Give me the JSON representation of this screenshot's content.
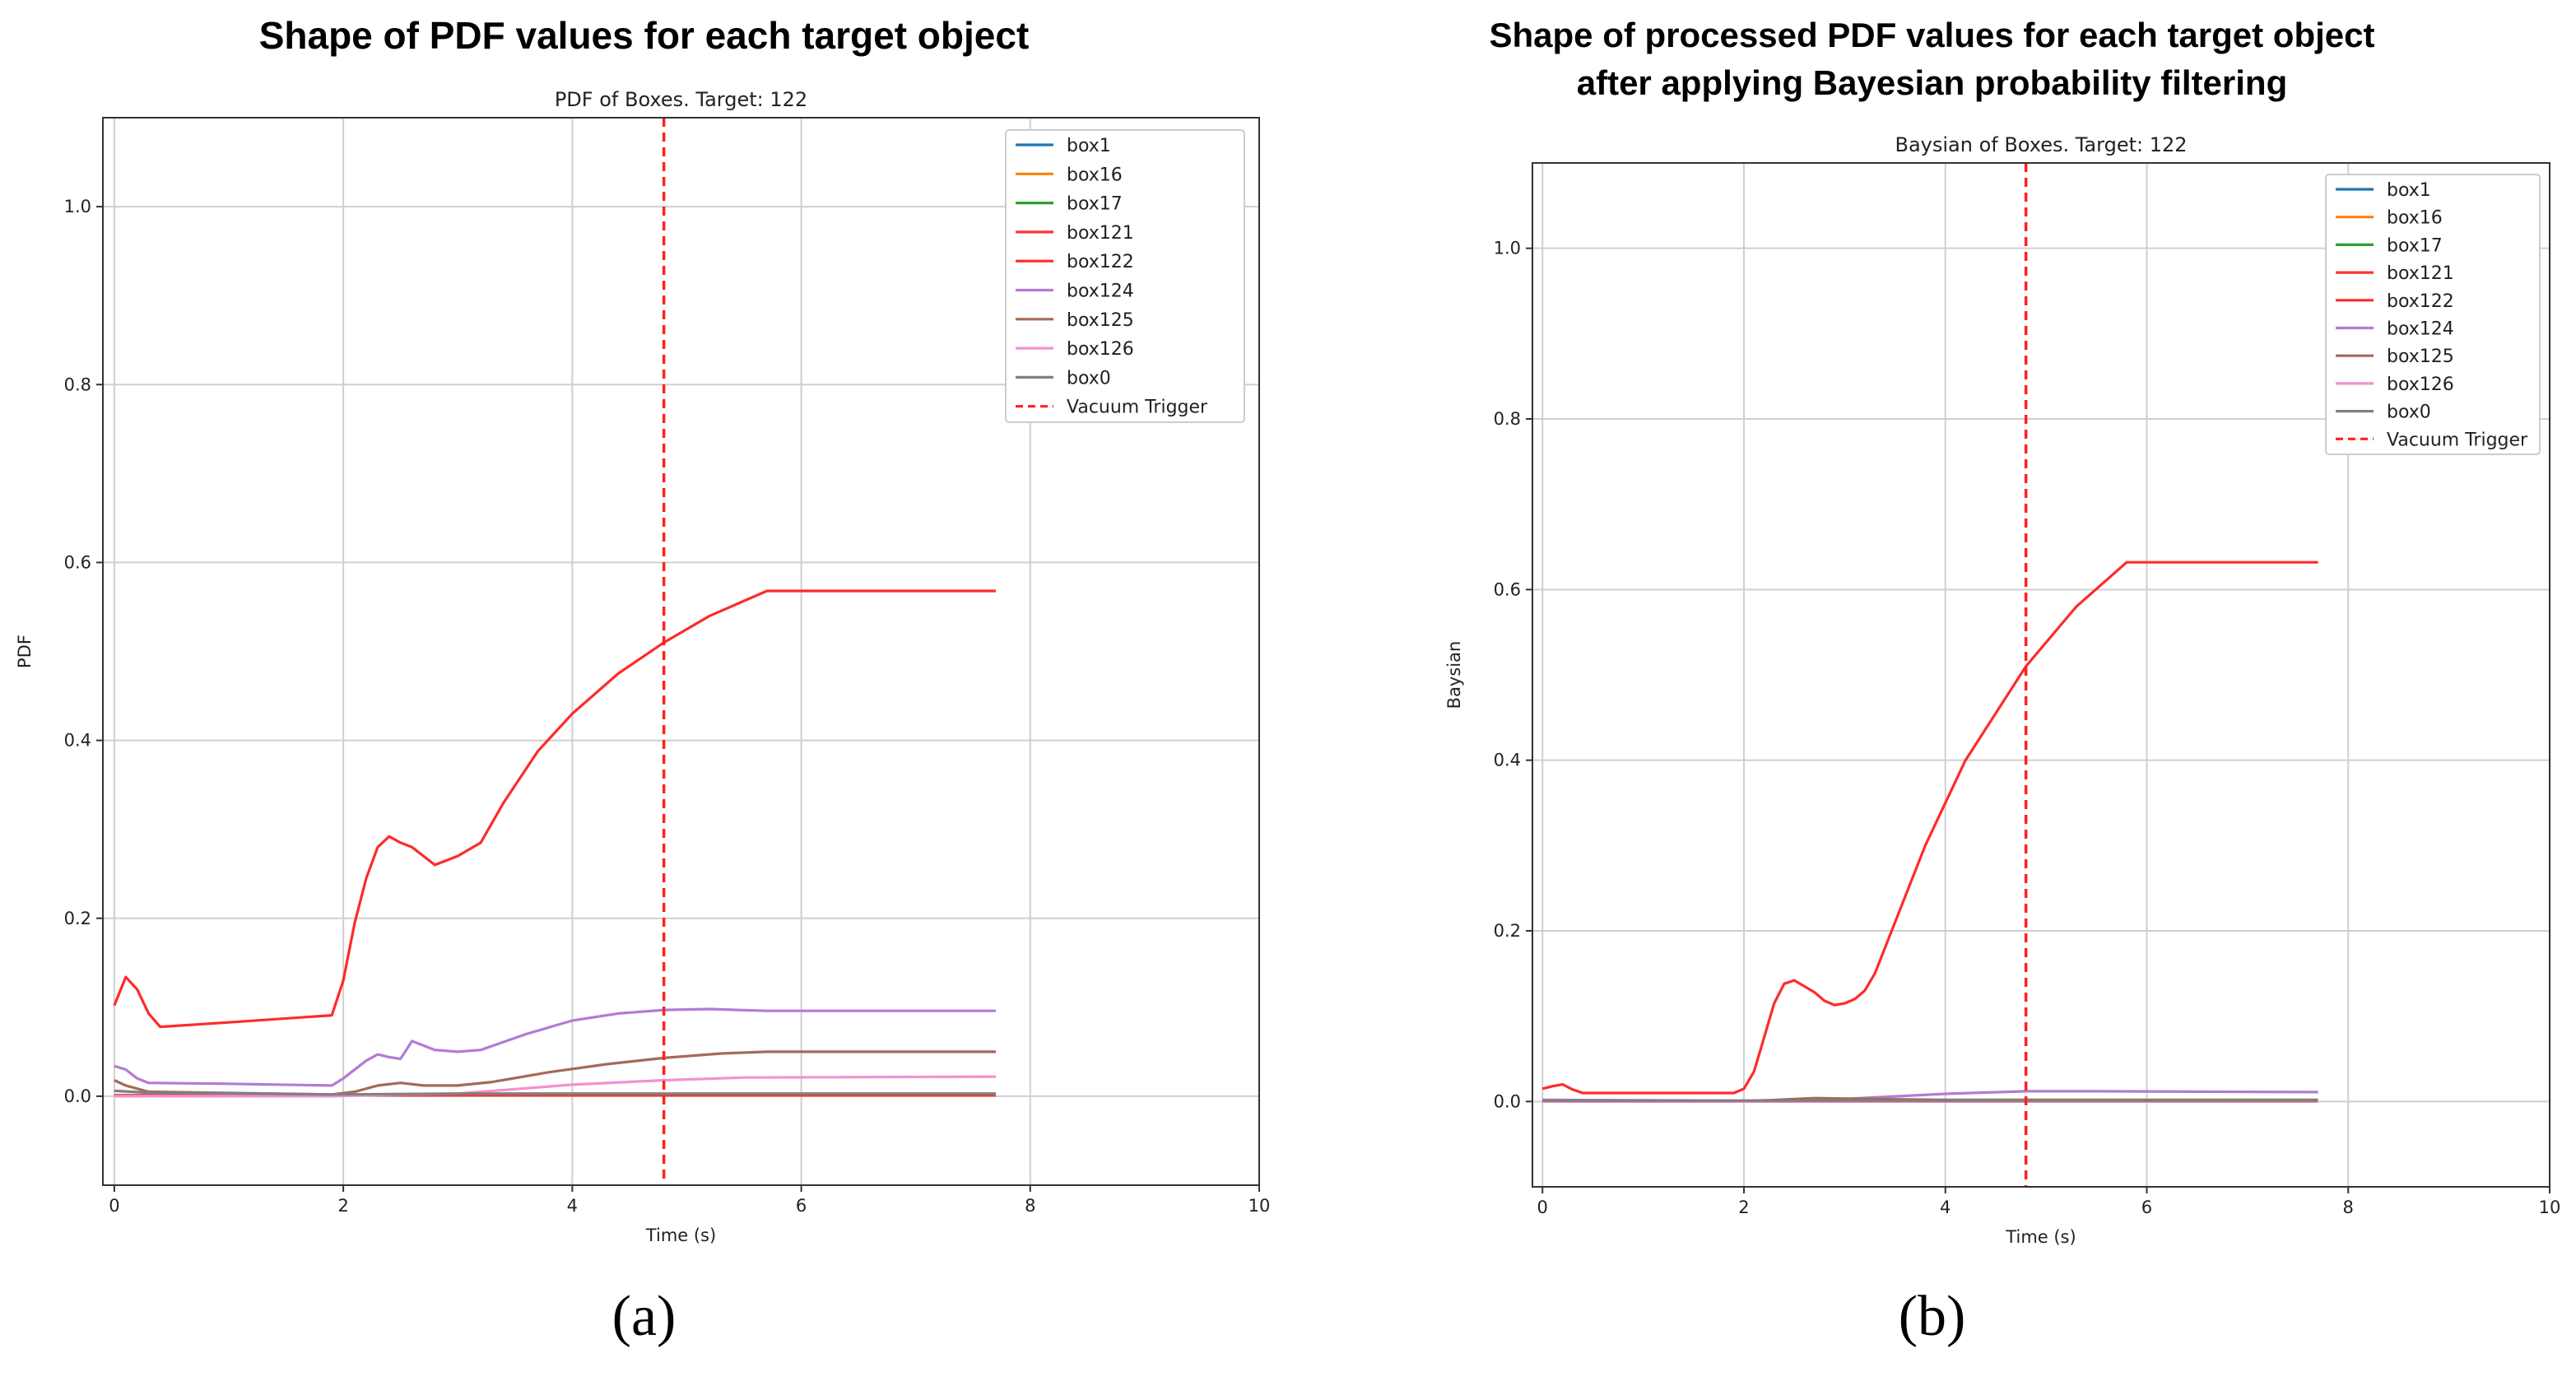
{
  "figure": {
    "panel_a_label": "(a)",
    "panel_b_label": "(b)"
  },
  "chart_data": [
    {
      "id": "a",
      "type": "line",
      "heading_lines": [
        "Shape of PDF values for each target object"
      ],
      "title": "PDF of Boxes. Target: 122",
      "xlabel": "Time (s)",
      "ylabel": "PDF",
      "xlim": [
        -0.1,
        10
      ],
      "ylim": [
        -0.1,
        1.1
      ],
      "xticks": [
        0,
        2,
        4,
        6,
        8,
        10
      ],
      "yticks": [
        0.0,
        0.2,
        0.4,
        0.6,
        0.8,
        1.0
      ],
      "grid": true,
      "legend_position": "top-right",
      "vline": {
        "name": "Vacuum Trigger",
        "x": 4.8,
        "color": "#ff2020",
        "style": "dashed"
      },
      "series": [
        {
          "name": "box1",
          "color": "#1f77b4",
          "points": [
            [
              0,
              0.001
            ],
            [
              1.9,
              0.001
            ],
            [
              7.7,
              0.001
            ]
          ]
        },
        {
          "name": "box16",
          "color": "#ff7f0e",
          "points": [
            [
              0,
              0.001
            ],
            [
              1.9,
              0.001
            ],
            [
              7.7,
              0.001
            ]
          ]
        },
        {
          "name": "box17",
          "color": "#2ca02c",
          "points": [
            [
              0,
              0.001
            ],
            [
              1.9,
              0.001
            ],
            [
              7.7,
              0.001
            ]
          ]
        },
        {
          "name": "box121",
          "color": "#ff3333",
          "points": [
            [
              0,
              0.001
            ],
            [
              1.9,
              0.001
            ],
            [
              7.7,
              0.001
            ]
          ]
        },
        {
          "name": "box122",
          "color": "#ff2a2a",
          "points": [
            [
              0,
              0.102
            ],
            [
              0.1,
              0.134
            ],
            [
              0.2,
              0.12
            ],
            [
              0.3,
              0.093
            ],
            [
              0.4,
              0.078
            ],
            [
              1.0,
              0.083
            ],
            [
              1.9,
              0.091
            ],
            [
              2.0,
              0.13
            ],
            [
              2.1,
              0.195
            ],
            [
              2.2,
              0.245
            ],
            [
              2.3,
              0.28
            ],
            [
              2.4,
              0.292
            ],
            [
              2.5,
              0.285
            ],
            [
              2.6,
              0.28
            ],
            [
              2.7,
              0.27
            ],
            [
              2.8,
              0.26
            ],
            [
              3.0,
              0.27
            ],
            [
              3.2,
              0.285
            ],
            [
              3.4,
              0.33
            ],
            [
              3.7,
              0.388
            ],
            [
              4.0,
              0.43
            ],
            [
              4.4,
              0.475
            ],
            [
              4.8,
              0.51
            ],
            [
              5.2,
              0.54
            ],
            [
              5.7,
              0.568
            ],
            [
              7.7,
              0.568
            ]
          ]
        },
        {
          "name": "box124",
          "color": "#b27bd6",
          "points": [
            [
              0,
              0.034
            ],
            [
              0.1,
              0.03
            ],
            [
              0.2,
              0.02
            ],
            [
              0.3,
              0.015
            ],
            [
              1.0,
              0.014
            ],
            [
              1.9,
              0.012
            ],
            [
              2.0,
              0.02
            ],
            [
              2.2,
              0.04
            ],
            [
              2.3,
              0.047
            ],
            [
              2.4,
              0.044
            ],
            [
              2.5,
              0.042
            ],
            [
              2.6,
              0.062
            ],
            [
              2.8,
              0.052
            ],
            [
              3.0,
              0.05
            ],
            [
              3.2,
              0.052
            ],
            [
              3.6,
              0.07
            ],
            [
              4.0,
              0.085
            ],
            [
              4.4,
              0.093
            ],
            [
              4.8,
              0.097
            ],
            [
              5.2,
              0.098
            ],
            [
              5.7,
              0.096
            ],
            [
              7.7,
              0.096
            ]
          ]
        },
        {
          "name": "box125",
          "color": "#a56a57",
          "points": [
            [
              0,
              0.018
            ],
            [
              0.1,
              0.012
            ],
            [
              0.3,
              0.005
            ],
            [
              1.9,
              0.002
            ],
            [
              2.1,
              0.005
            ],
            [
              2.3,
              0.012
            ],
            [
              2.5,
              0.015
            ],
            [
              2.7,
              0.012
            ],
            [
              3.0,
              0.012
            ],
            [
              3.3,
              0.016
            ],
            [
              3.8,
              0.027
            ],
            [
              4.3,
              0.036
            ],
            [
              4.8,
              0.043
            ],
            [
              5.3,
              0.048
            ],
            [
              5.7,
              0.05
            ],
            [
              7.7,
              0.05
            ]
          ]
        },
        {
          "name": "box126",
          "color": "#f58fd2",
          "points": [
            [
              0,
              0.0
            ],
            [
              1.9,
              0.0
            ],
            [
              2.5,
              0.002
            ],
            [
              3.0,
              0.003
            ],
            [
              3.5,
              0.008
            ],
            [
              4.0,
              0.013
            ],
            [
              4.8,
              0.018
            ],
            [
              5.5,
              0.021
            ],
            [
              7.7,
              0.022
            ]
          ]
        },
        {
          "name": "box0",
          "color": "#808080",
          "points": [
            [
              0,
              0.006
            ],
            [
              0.3,
              0.004
            ],
            [
              1.9,
              0.002
            ],
            [
              3.0,
              0.003
            ],
            [
              4.8,
              0.003
            ],
            [
              7.7,
              0.003
            ]
          ]
        }
      ]
    },
    {
      "id": "b",
      "type": "line",
      "heading_lines": [
        "Shape of processed PDF values for each target object",
        "after applying Bayesian probability filtering"
      ],
      "title": "Baysian of Boxes. Target: 122",
      "xlabel": "Time (s)",
      "ylabel": "Baysian",
      "xlim": [
        -0.1,
        10
      ],
      "ylim": [
        -0.1,
        1.1
      ],
      "xticks": [
        0,
        2,
        4,
        6,
        8,
        10
      ],
      "yticks": [
        0.0,
        0.2,
        0.4,
        0.6,
        0.8,
        1.0
      ],
      "grid": true,
      "legend_position": "top-right",
      "vline": {
        "name": "Vacuum Trigger",
        "x": 4.8,
        "color": "#ff2020",
        "style": "dashed"
      },
      "series": [
        {
          "name": "box1",
          "color": "#1f77b4",
          "points": [
            [
              0,
              0.0
            ],
            [
              7.7,
              0.0
            ]
          ]
        },
        {
          "name": "box16",
          "color": "#ff7f0e",
          "points": [
            [
              0,
              0.0
            ],
            [
              7.7,
              0.0
            ]
          ]
        },
        {
          "name": "box17",
          "color": "#2ca02c",
          "points": [
            [
              0,
              0.0
            ],
            [
              7.7,
              0.0
            ]
          ]
        },
        {
          "name": "box121",
          "color": "#ff3333",
          "points": [
            [
              0,
              0.0
            ],
            [
              7.7,
              0.0
            ]
          ]
        },
        {
          "name": "box122",
          "color": "#ff2a2a",
          "points": [
            [
              0,
              0.015
            ],
            [
              0.1,
              0.018
            ],
            [
              0.2,
              0.02
            ],
            [
              0.3,
              0.014
            ],
            [
              0.4,
              0.01
            ],
            [
              1.0,
              0.01
            ],
            [
              1.9,
              0.01
            ],
            [
              2.0,
              0.015
            ],
            [
              2.1,
              0.035
            ],
            [
              2.2,
              0.075
            ],
            [
              2.3,
              0.115
            ],
            [
              2.4,
              0.138
            ],
            [
              2.5,
              0.142
            ],
            [
              2.6,
              0.135
            ],
            [
              2.7,
              0.128
            ],
            [
              2.8,
              0.118
            ],
            [
              2.9,
              0.113
            ],
            [
              3.0,
              0.115
            ],
            [
              3.1,
              0.12
            ],
            [
              3.2,
              0.13
            ],
            [
              3.3,
              0.15
            ],
            [
              3.5,
              0.21
            ],
            [
              3.8,
              0.3
            ],
            [
              4.2,
              0.4
            ],
            [
              4.8,
              0.51
            ],
            [
              5.3,
              0.58
            ],
            [
              5.8,
              0.632
            ],
            [
              7.7,
              0.632
            ]
          ]
        },
        {
          "name": "box124",
          "color": "#b27bd6",
          "points": [
            [
              0,
              0.002
            ],
            [
              2.0,
              0.001
            ],
            [
              3.0,
              0.003
            ],
            [
              3.5,
              0.006
            ],
            [
              4.0,
              0.009
            ],
            [
              4.8,
              0.012
            ],
            [
              5.5,
              0.012
            ],
            [
              7.7,
              0.011
            ]
          ]
        },
        {
          "name": "box125",
          "color": "#a56a57",
          "points": [
            [
              0,
              0.001
            ],
            [
              2.0,
              0.0
            ],
            [
              2.7,
              0.004
            ],
            [
              3.2,
              0.003
            ],
            [
              4.0,
              0.002
            ],
            [
              7.7,
              0.002
            ]
          ]
        },
        {
          "name": "box126",
          "color": "#f58fd2",
          "points": [
            [
              0,
              0.0
            ],
            [
              7.7,
              0.0
            ]
          ]
        },
        {
          "name": "box0",
          "color": "#808080",
          "points": [
            [
              0,
              0.001
            ],
            [
              7.7,
              0.001
            ]
          ]
        }
      ]
    }
  ]
}
